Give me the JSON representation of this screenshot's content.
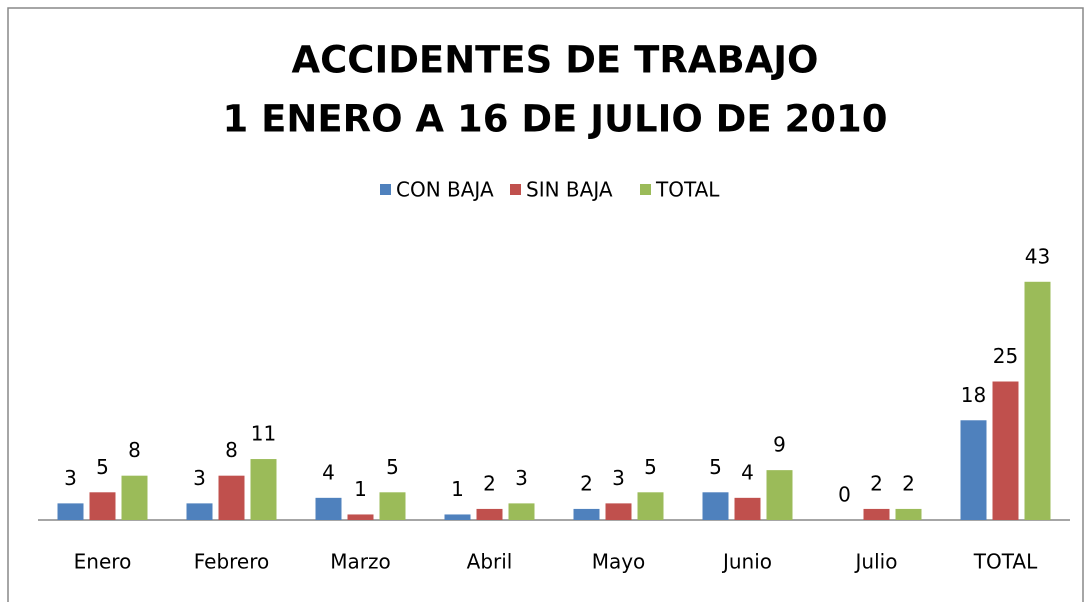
{
  "chart_data": {
    "type": "bar",
    "title": [
      "ACCIDENTES DE TRABAJO",
      "1 ENERO A 16 DE JULIO DE 2010"
    ],
    "categories": [
      "Enero",
      "Febrero",
      "Marzo",
      "Abril",
      "Mayo",
      "Junio",
      "Julio",
      "TOTAL"
    ],
    "series": [
      {
        "name": "CON BAJA",
        "color": "#4f81bd",
        "values": [
          3,
          3,
          4,
          1,
          2,
          5,
          0,
          18
        ]
      },
      {
        "name": "SIN BAJA",
        "color": "#c0504d",
        "values": [
          5,
          8,
          1,
          2,
          3,
          4,
          2,
          25
        ]
      },
      {
        "name": "TOTAL",
        "color": "#9bbb59",
        "values": [
          8,
          11,
          5,
          3,
          5,
          9,
          2,
          43
        ]
      }
    ],
    "ylim": [
      0,
      50
    ],
    "legend": "top"
  }
}
